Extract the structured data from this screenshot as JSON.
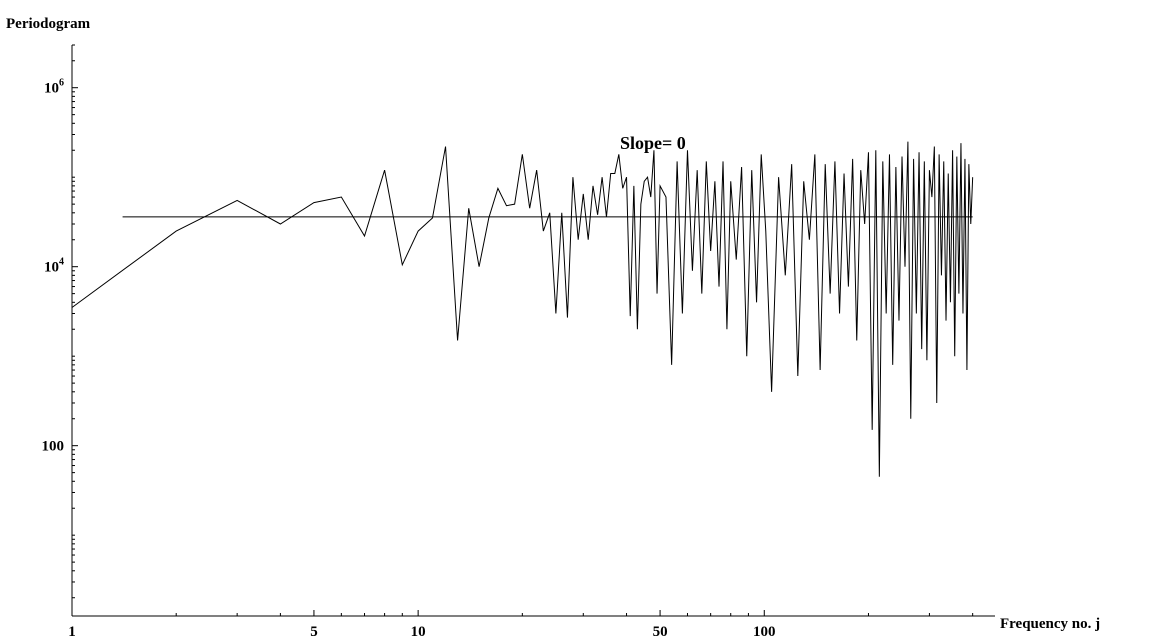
{
  "chart_data": {
    "type": "line",
    "xscale": "log",
    "yscale": "log",
    "ylabel": "Periodogram",
    "xlabel": "Frequency no. j",
    "annotation": "Slope= 0",
    "xlim": [
      1,
      420
    ],
    "ylim": [
      1.25,
      3000000
    ],
    "x_ticks": [
      {
        "value": 1,
        "label": "1"
      },
      {
        "value": 5,
        "label": "5"
      },
      {
        "value": 10,
        "label": "10"
      },
      {
        "value": 50,
        "label": "50"
      },
      {
        "value": 100,
        "label": "100"
      }
    ],
    "y_ticks": [
      {
        "value": 100,
        "label": "100",
        "base": "",
        "exp": ""
      },
      {
        "value": 10000,
        "label": "",
        "base": "10",
        "exp": "4"
      },
      {
        "value": 1000000,
        "label": "",
        "base": "10",
        "exp": "6"
      }
    ],
    "fit_line": {
      "x_start": 1.4,
      "x_end": 400,
      "y": 36000,
      "slope": 0
    },
    "series": [
      {
        "values_x": [
          1,
          2,
          3,
          4,
          5,
          6,
          7,
          8,
          9,
          10,
          11,
          12,
          13,
          14,
          15,
          16,
          17,
          18,
          19,
          20,
          21,
          22,
          23,
          24,
          25,
          26,
          27,
          28,
          29,
          30,
          31,
          32,
          33,
          34,
          35,
          36,
          37,
          38,
          39,
          40,
          41,
          42,
          43,
          44,
          45,
          46,
          47,
          48,
          49,
          50,
          52,
          54,
          56,
          58,
          60,
          62,
          64,
          66,
          68,
          70,
          72,
          74,
          76,
          78,
          80,
          83,
          86,
          89,
          92,
          95,
          98,
          101,
          105,
          110,
          115,
          120,
          125,
          130,
          135,
          140,
          145,
          150,
          155,
          160,
          165,
          170,
          175,
          180,
          185,
          190,
          195,
          200,
          205,
          210,
          215,
          220,
          225,
          230,
          235,
          240,
          245,
          250,
          255,
          260,
          265,
          270,
          275,
          280,
          285,
          290,
          295,
          300,
          305,
          310,
          315,
          320,
          325,
          330,
          335,
          340,
          345,
          350,
          355,
          360,
          365,
          370,
          375,
          380,
          385,
          390,
          395,
          400
        ],
        "values_y": [
          3500,
          25000,
          55000,
          30000,
          52000,
          60000,
          22000,
          120000,
          10500,
          25000,
          35000,
          220000,
          1500,
          45000,
          10000,
          35000,
          75000,
          48000,
          50000,
          180000,
          45000,
          120000,
          25000,
          40000,
          3000,
          40000,
          2700,
          100000,
          20000,
          65000,
          20000,
          80000,
          38000,
          100000,
          36000,
          110000,
          110000,
          180000,
          75000,
          100000,
          2800,
          80000,
          2000,
          50000,
          90000,
          100000,
          60000,
          200000,
          5000,
          80000,
          60000,
          800,
          150000,
          3000,
          200000,
          9000,
          120000,
          5000,
          150000,
          15000,
          90000,
          6000,
          150000,
          2000,
          90000,
          12000,
          130000,
          1000,
          120000,
          4000,
          180000,
          25000,
          400,
          100000,
          8000,
          140000,
          600,
          90000,
          20000,
          180000,
          700,
          140000,
          5000,
          150000,
          3000,
          110000,
          6000,
          160000,
          1500,
          120000,
          30000,
          190000,
          150,
          200000,
          45,
          150000,
          3000,
          180000,
          800,
          130000,
          2500,
          170000,
          10000,
          250000,
          200,
          160000,
          3000,
          190000,
          1200,
          150000,
          900,
          120000,
          60000,
          220000,
          300,
          180000,
          8000,
          150000,
          2500,
          110000,
          4000,
          200000,
          1000,
          170000,
          5000,
          240000,
          3000,
          160000,
          700,
          140000,
          30000,
          100000
        ]
      }
    ]
  }
}
